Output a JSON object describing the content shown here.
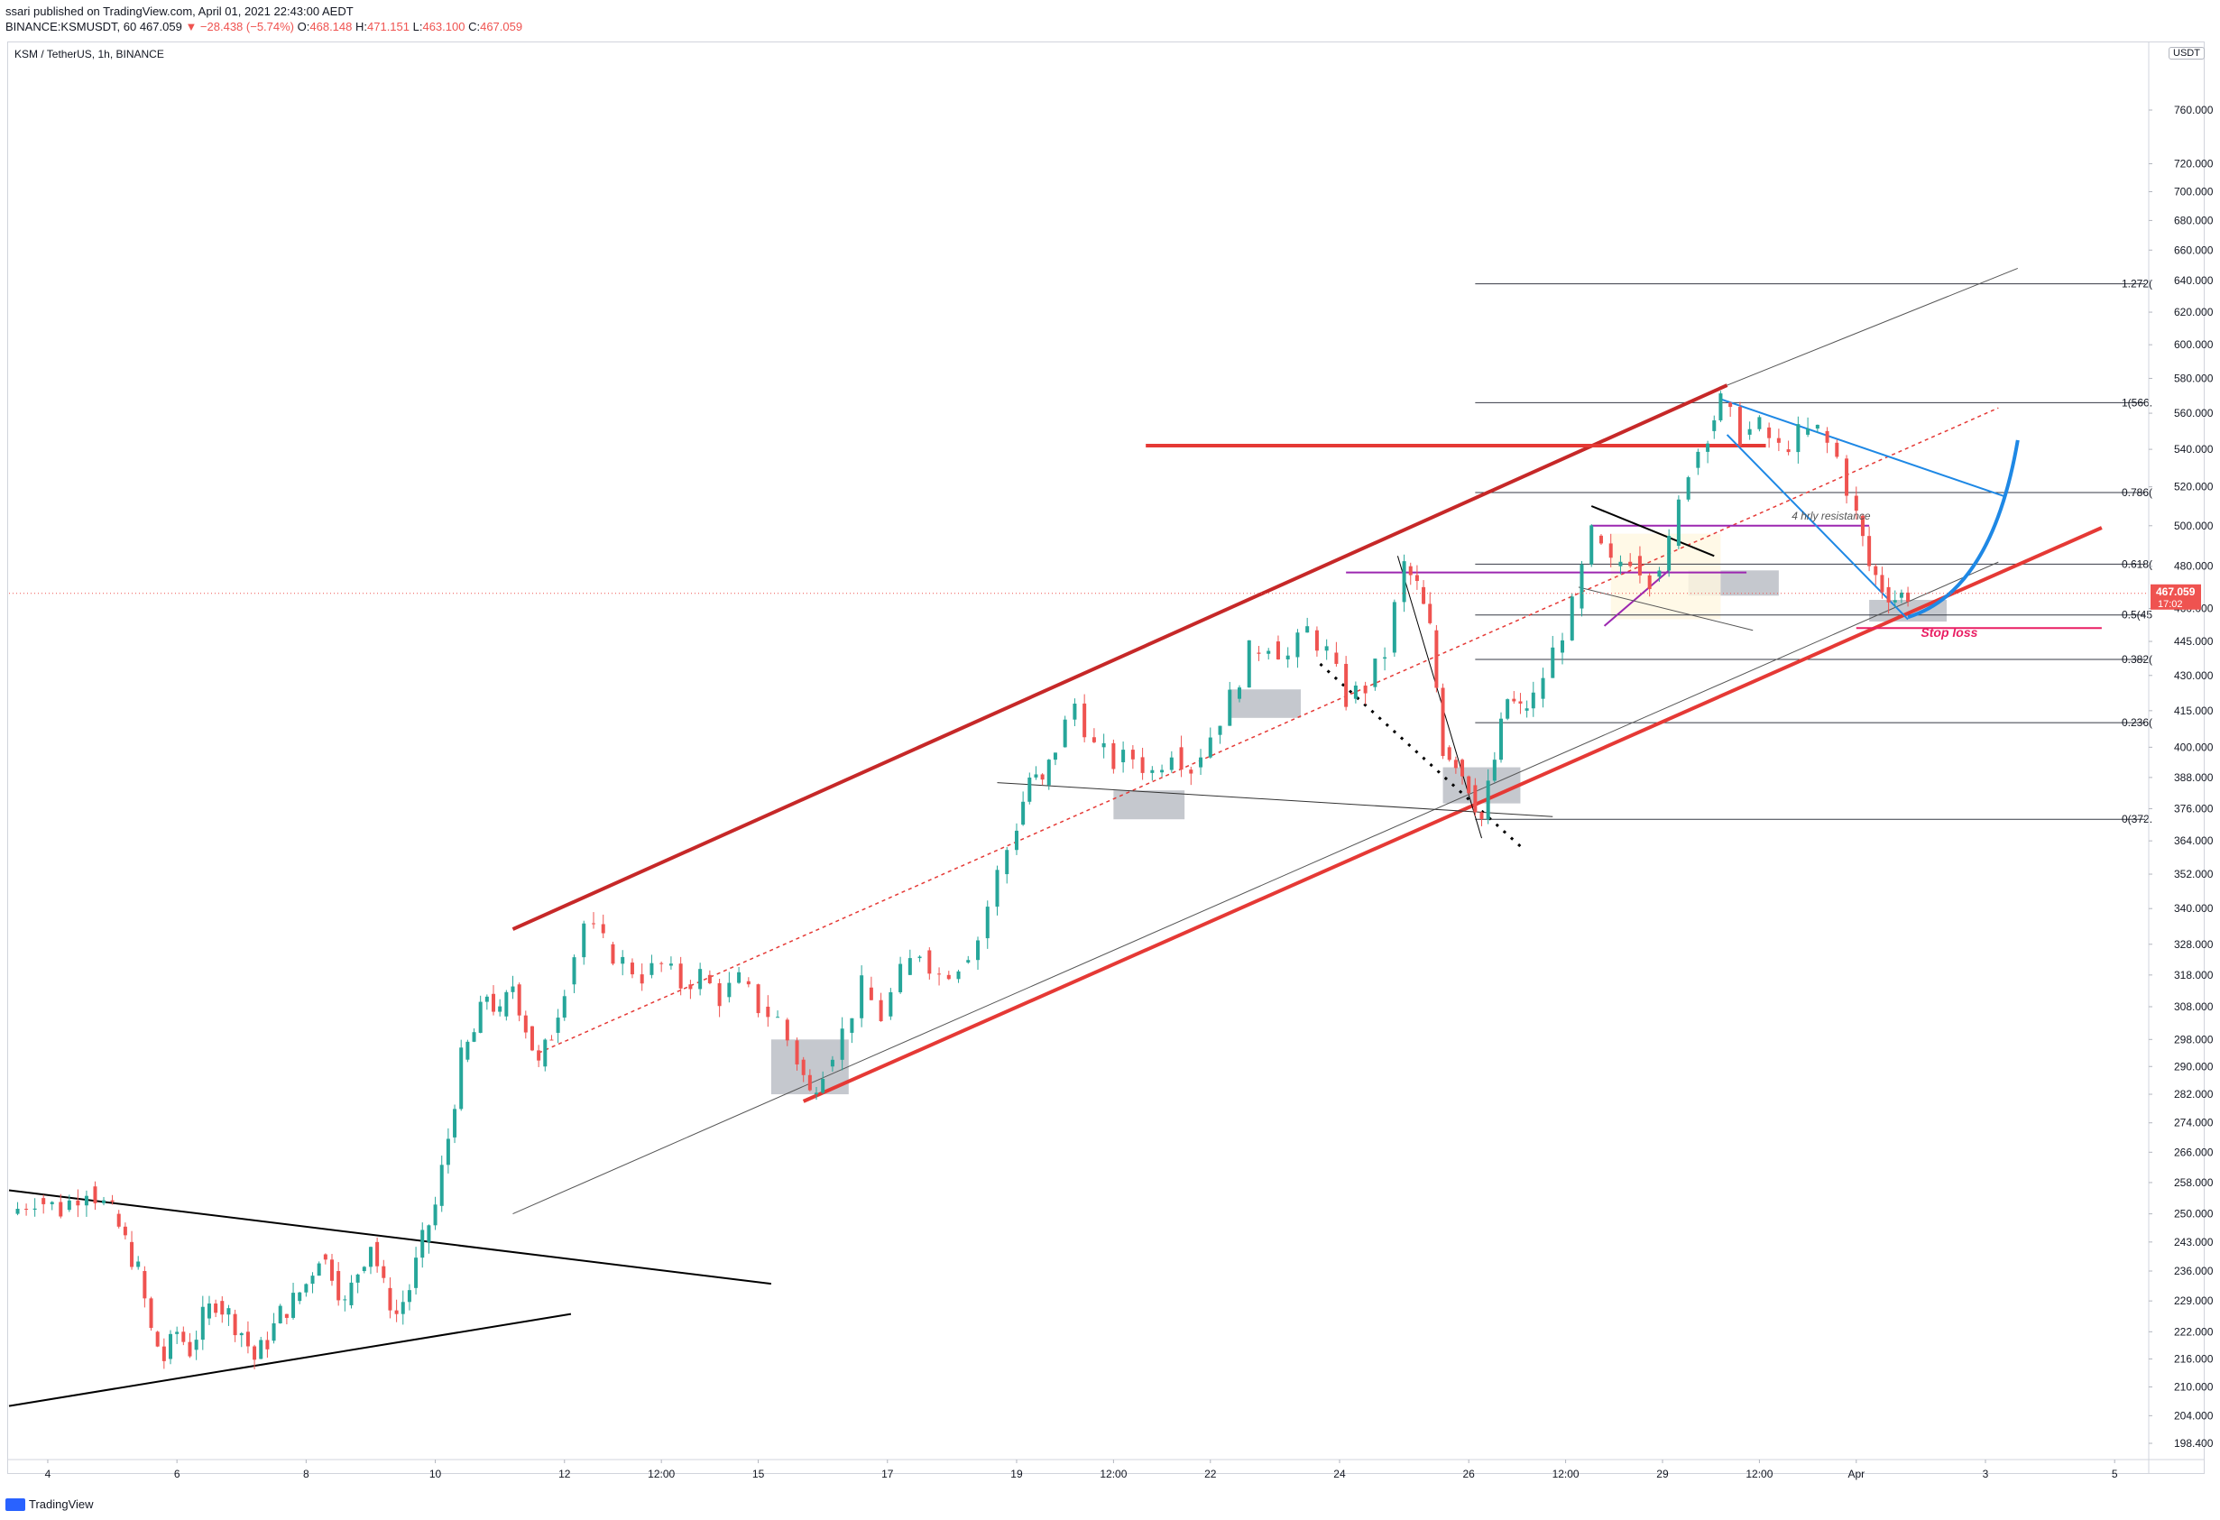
{
  "header": {
    "published": "ssari published on TradingView.com, April 01, 2021 22:43:00 AEDT",
    "symbol_line": "BINANCE:KSMUSDT, 60",
    "price": "467.059",
    "change": "▼ −28.438 (−5.74%)",
    "open_label": "O:",
    "open": "468.148",
    "high_label": "H:",
    "high": "471.151",
    "low_label": "L:",
    "low": "463.100",
    "close_label": "C:",
    "close": "467.059"
  },
  "symbol_label": "KSM / TetherUS, 1h, BINANCE",
  "currency_badge": "USDT",
  "logo_text": "TradingView",
  "colors": {
    "up": "#26a69a",
    "down": "#ef5350",
    "channel": "#e53935",
    "fib": "#363a45",
    "blue": "#1e88e5",
    "purple": "#9c27b0",
    "zone": "#b2b5be",
    "price_tag": "#ef5350",
    "stoploss": "#e91e63"
  },
  "chart_data": {
    "type": "candlestick",
    "title": "KSM / TetherUS, 1h, BINANCE",
    "y_ticks": [
      198.4,
      204,
      210,
      216,
      222,
      229,
      236,
      243,
      250,
      258,
      266,
      274,
      282,
      290,
      298,
      308,
      318,
      328,
      340,
      352,
      364,
      376,
      388,
      400,
      415,
      430,
      445,
      460,
      480,
      500,
      520,
      540,
      560,
      580,
      600,
      620,
      640,
      660,
      680,
      700,
      720,
      760
    ],
    "y_tick_labels": [
      "198.400",
      "204.000",
      "210.000",
      "216.000",
      "222.000",
      "229.000",
      "236.000",
      "243.000",
      "250.000",
      "258.000",
      "266.000",
      "274.000",
      "282.000",
      "290.000",
      "298.000",
      "308.000",
      "318.000",
      "328.000",
      "340.000",
      "352.000",
      "364.000",
      "376.000",
      "388.000",
      "400.000",
      "415.000",
      "430.000",
      "445.000",
      "460.000",
      "480.000",
      "500.000",
      "520.000",
      "540.000",
      "560.000",
      "580.000",
      "600.000",
      "620.000",
      "640.000",
      "660.000",
      "680.000",
      "700.000",
      "720.000",
      "760.000"
    ],
    "x_tick_labels": [
      "4",
      "6",
      "8",
      "10",
      "12",
      "12:00",
      "15",
      "17",
      "19",
      "12:00",
      "22",
      "24",
      "26",
      "12:00",
      "29",
      "12:00",
      "Apr",
      "3",
      "5"
    ],
    "x_tick_positions_days": [
      4,
      6,
      8,
      10,
      12,
      13.5,
      15,
      17,
      19,
      20.5,
      22,
      24,
      26,
      27.5,
      29,
      30.5,
      32,
      34,
      36
    ],
    "ylim": [
      198.4,
      780
    ],
    "xlim": [
      3.4,
      36.5
    ],
    "current_price": "467.059",
    "countdown": "17:02",
    "price_path": [
      [
        3.4,
        250
      ],
      [
        3.8,
        254
      ],
      [
        4.2,
        251
      ],
      [
        4.6,
        257
      ],
      [
        5.0,
        250
      ],
      [
        5.2,
        243
      ],
      [
        5.4,
        236
      ],
      [
        5.6,
        222
      ],
      [
        5.8,
        216
      ],
      [
        6.0,
        222
      ],
      [
        6.2,
        218
      ],
      [
        6.4,
        225
      ],
      [
        6.6,
        229
      ],
      [
        6.8,
        226
      ],
      [
        7.0,
        222
      ],
      [
        7.2,
        216
      ],
      [
        7.4,
        220
      ],
      [
        7.6,
        226
      ],
      [
        7.8,
        229
      ],
      [
        8.0,
        233
      ],
      [
        8.2,
        240
      ],
      [
        8.4,
        236
      ],
      [
        8.6,
        228
      ],
      [
        8.8,
        236
      ],
      [
        9.0,
        243
      ],
      [
        9.2,
        232
      ],
      [
        9.4,
        226
      ],
      [
        9.6,
        232
      ],
      [
        9.8,
        243
      ],
      [
        10.0,
        252
      ],
      [
        10.2,
        270
      ],
      [
        10.4,
        292
      ],
      [
        10.6,
        300
      ],
      [
        10.8,
        312
      ],
      [
        11.0,
        305
      ],
      [
        11.2,
        315
      ],
      [
        11.4,
        302
      ],
      [
        11.6,
        290
      ],
      [
        11.8,
        300
      ],
      [
        12.0,
        315
      ],
      [
        12.3,
        335
      ],
      [
        12.6,
        328
      ],
      [
        12.9,
        322
      ],
      [
        13.2,
        318
      ],
      [
        13.5,
        321
      ],
      [
        13.8,
        315
      ],
      [
        14.1,
        318
      ],
      [
        14.4,
        311
      ],
      [
        14.7,
        316
      ],
      [
        15.0,
        308
      ],
      [
        15.3,
        304
      ],
      [
        15.6,
        292
      ],
      [
        15.8,
        282
      ],
      [
        16.0,
        290
      ],
      [
        16.3,
        300
      ],
      [
        16.6,
        314
      ],
      [
        16.9,
        305
      ],
      [
        17.2,
        318
      ],
      [
        17.5,
        326
      ],
      [
        17.8,
        318
      ],
      [
        18.1,
        322
      ],
      [
        18.4,
        330
      ],
      [
        18.7,
        352
      ],
      [
        19.0,
        370
      ],
      [
        19.2,
        388
      ],
      [
        19.4,
        385
      ],
      [
        19.6,
        400
      ],
      [
        19.9,
        418
      ],
      [
        20.2,
        400
      ],
      [
        20.5,
        394
      ],
      [
        20.8,
        396
      ],
      [
        21.1,
        390
      ],
      [
        21.4,
        400
      ],
      [
        21.7,
        392
      ],
      [
        22.0,
        405
      ],
      [
        22.3,
        420
      ],
      [
        22.6,
        440
      ],
      [
        22.9,
        445
      ],
      [
        23.2,
        438
      ],
      [
        23.5,
        450
      ],
      [
        23.8,
        440
      ],
      [
        24.1,
        420
      ],
      [
        24.4,
        425
      ],
      [
        24.7,
        440
      ],
      [
        25.0,
        480
      ],
      [
        25.2,
        470
      ],
      [
        25.4,
        450
      ],
      [
        25.6,
        400
      ],
      [
        25.8,
        395
      ],
      [
        26.0,
        385
      ],
      [
        26.2,
        372
      ],
      [
        26.4,
        395
      ],
      [
        26.6,
        420
      ],
      [
        26.8,
        415
      ],
      [
        27.0,
        420
      ],
      [
        27.3,
        440
      ],
      [
        27.6,
        460
      ],
      [
        27.9,
        495
      ],
      [
        28.2,
        480
      ],
      [
        28.5,
        485
      ],
      [
        28.8,
        475
      ],
      [
        29.1,
        490
      ],
      [
        29.4,
        530
      ],
      [
        29.7,
        550
      ],
      [
        29.9,
        566
      ],
      [
        30.2,
        548
      ],
      [
        30.5,
        552
      ],
      [
        30.8,
        540
      ],
      [
        31.1,
        548
      ],
      [
        31.4,
        550
      ],
      [
        31.7,
        535
      ],
      [
        32.0,
        505
      ],
      [
        32.2,
        480
      ],
      [
        32.4,
        470
      ],
      [
        32.6,
        465
      ],
      [
        32.8,
        467
      ]
    ],
    "fib_levels": [
      {
        "label": "1.272(",
        "value": 638
      },
      {
        "label": "1(566.",
        "value": 566
      },
      {
        "label": "0.786(",
        "value": 517
      },
      {
        "label": "0.618(",
        "value": 481
      },
      {
        "label": "0.5(45",
        "value": 457
      },
      {
        "label": "0.382(",
        "value": 437
      },
      {
        "label": "0.236(",
        "value": 410
      },
      {
        "label": "0(372.",
        "value": 372
      }
    ],
    "annotations": [
      {
        "text": "4 hrly resistance"
      },
      {
        "text": "Stop loss"
      }
    ]
  }
}
